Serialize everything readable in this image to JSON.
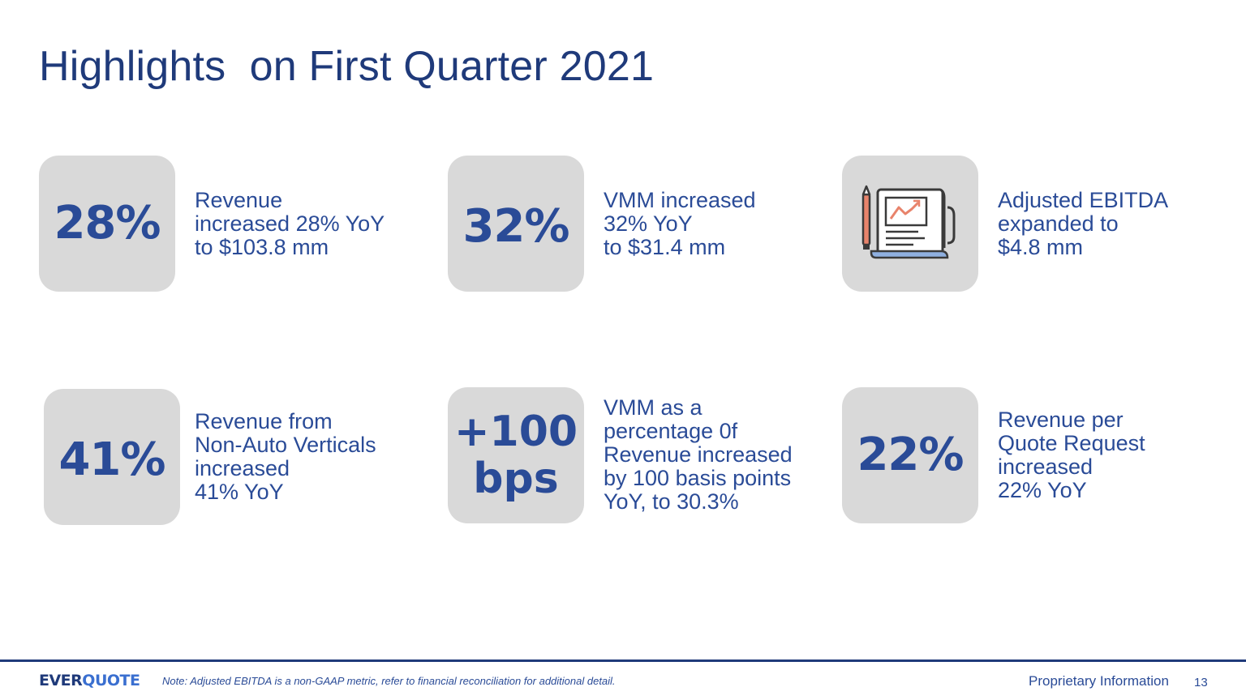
{
  "slide": {
    "title": "Highlights  on First Quarter 2021"
  },
  "highlights": [
    {
      "big": "28%",
      "lines": [
        "Revenue",
        "increased 28% YoY",
        "to $103.8 mm"
      ]
    },
    {
      "big": "32%",
      "lines": [
        "VMM increased",
        "32% YoY",
        "to $31.4 mm"
      ]
    },
    {
      "icon": "report-chart-icon",
      "lines": [
        "Adjusted EBITDA",
        "expanded to",
        "$4.8 mm"
      ]
    },
    {
      "big": "41%",
      "lines": [
        "Revenue from",
        "Non-Auto Verticals",
        "increased",
        "41% YoY"
      ]
    },
    {
      "big_line1": "+100",
      "big_line2": "bps",
      "lines": [
        "VMM as a",
        "percentage 0f",
        "Revenue increased",
        "by 100 basis points",
        "YoY, to 30.3%"
      ]
    },
    {
      "big": "22%",
      "lines": [
        "Revenue per",
        "Quote Request",
        "increased",
        "22% YoY"
      ]
    }
  ],
  "footer": {
    "logo_part1": "EVER",
    "logo_part2": "QUOTE",
    "note": "Note: Adjusted EBITDA is a non-GAAP metric, refer to financial reconciliation for additional detail.",
    "proprietary": "Proprietary Information",
    "page_number": "13"
  },
  "colors": {
    "primary": "#2a4b97",
    "dark": "#1f3a7a",
    "tile": "#d9d9d9",
    "accent_chart": "#e8836b",
    "accent_paper": "#8fb0e0"
  }
}
